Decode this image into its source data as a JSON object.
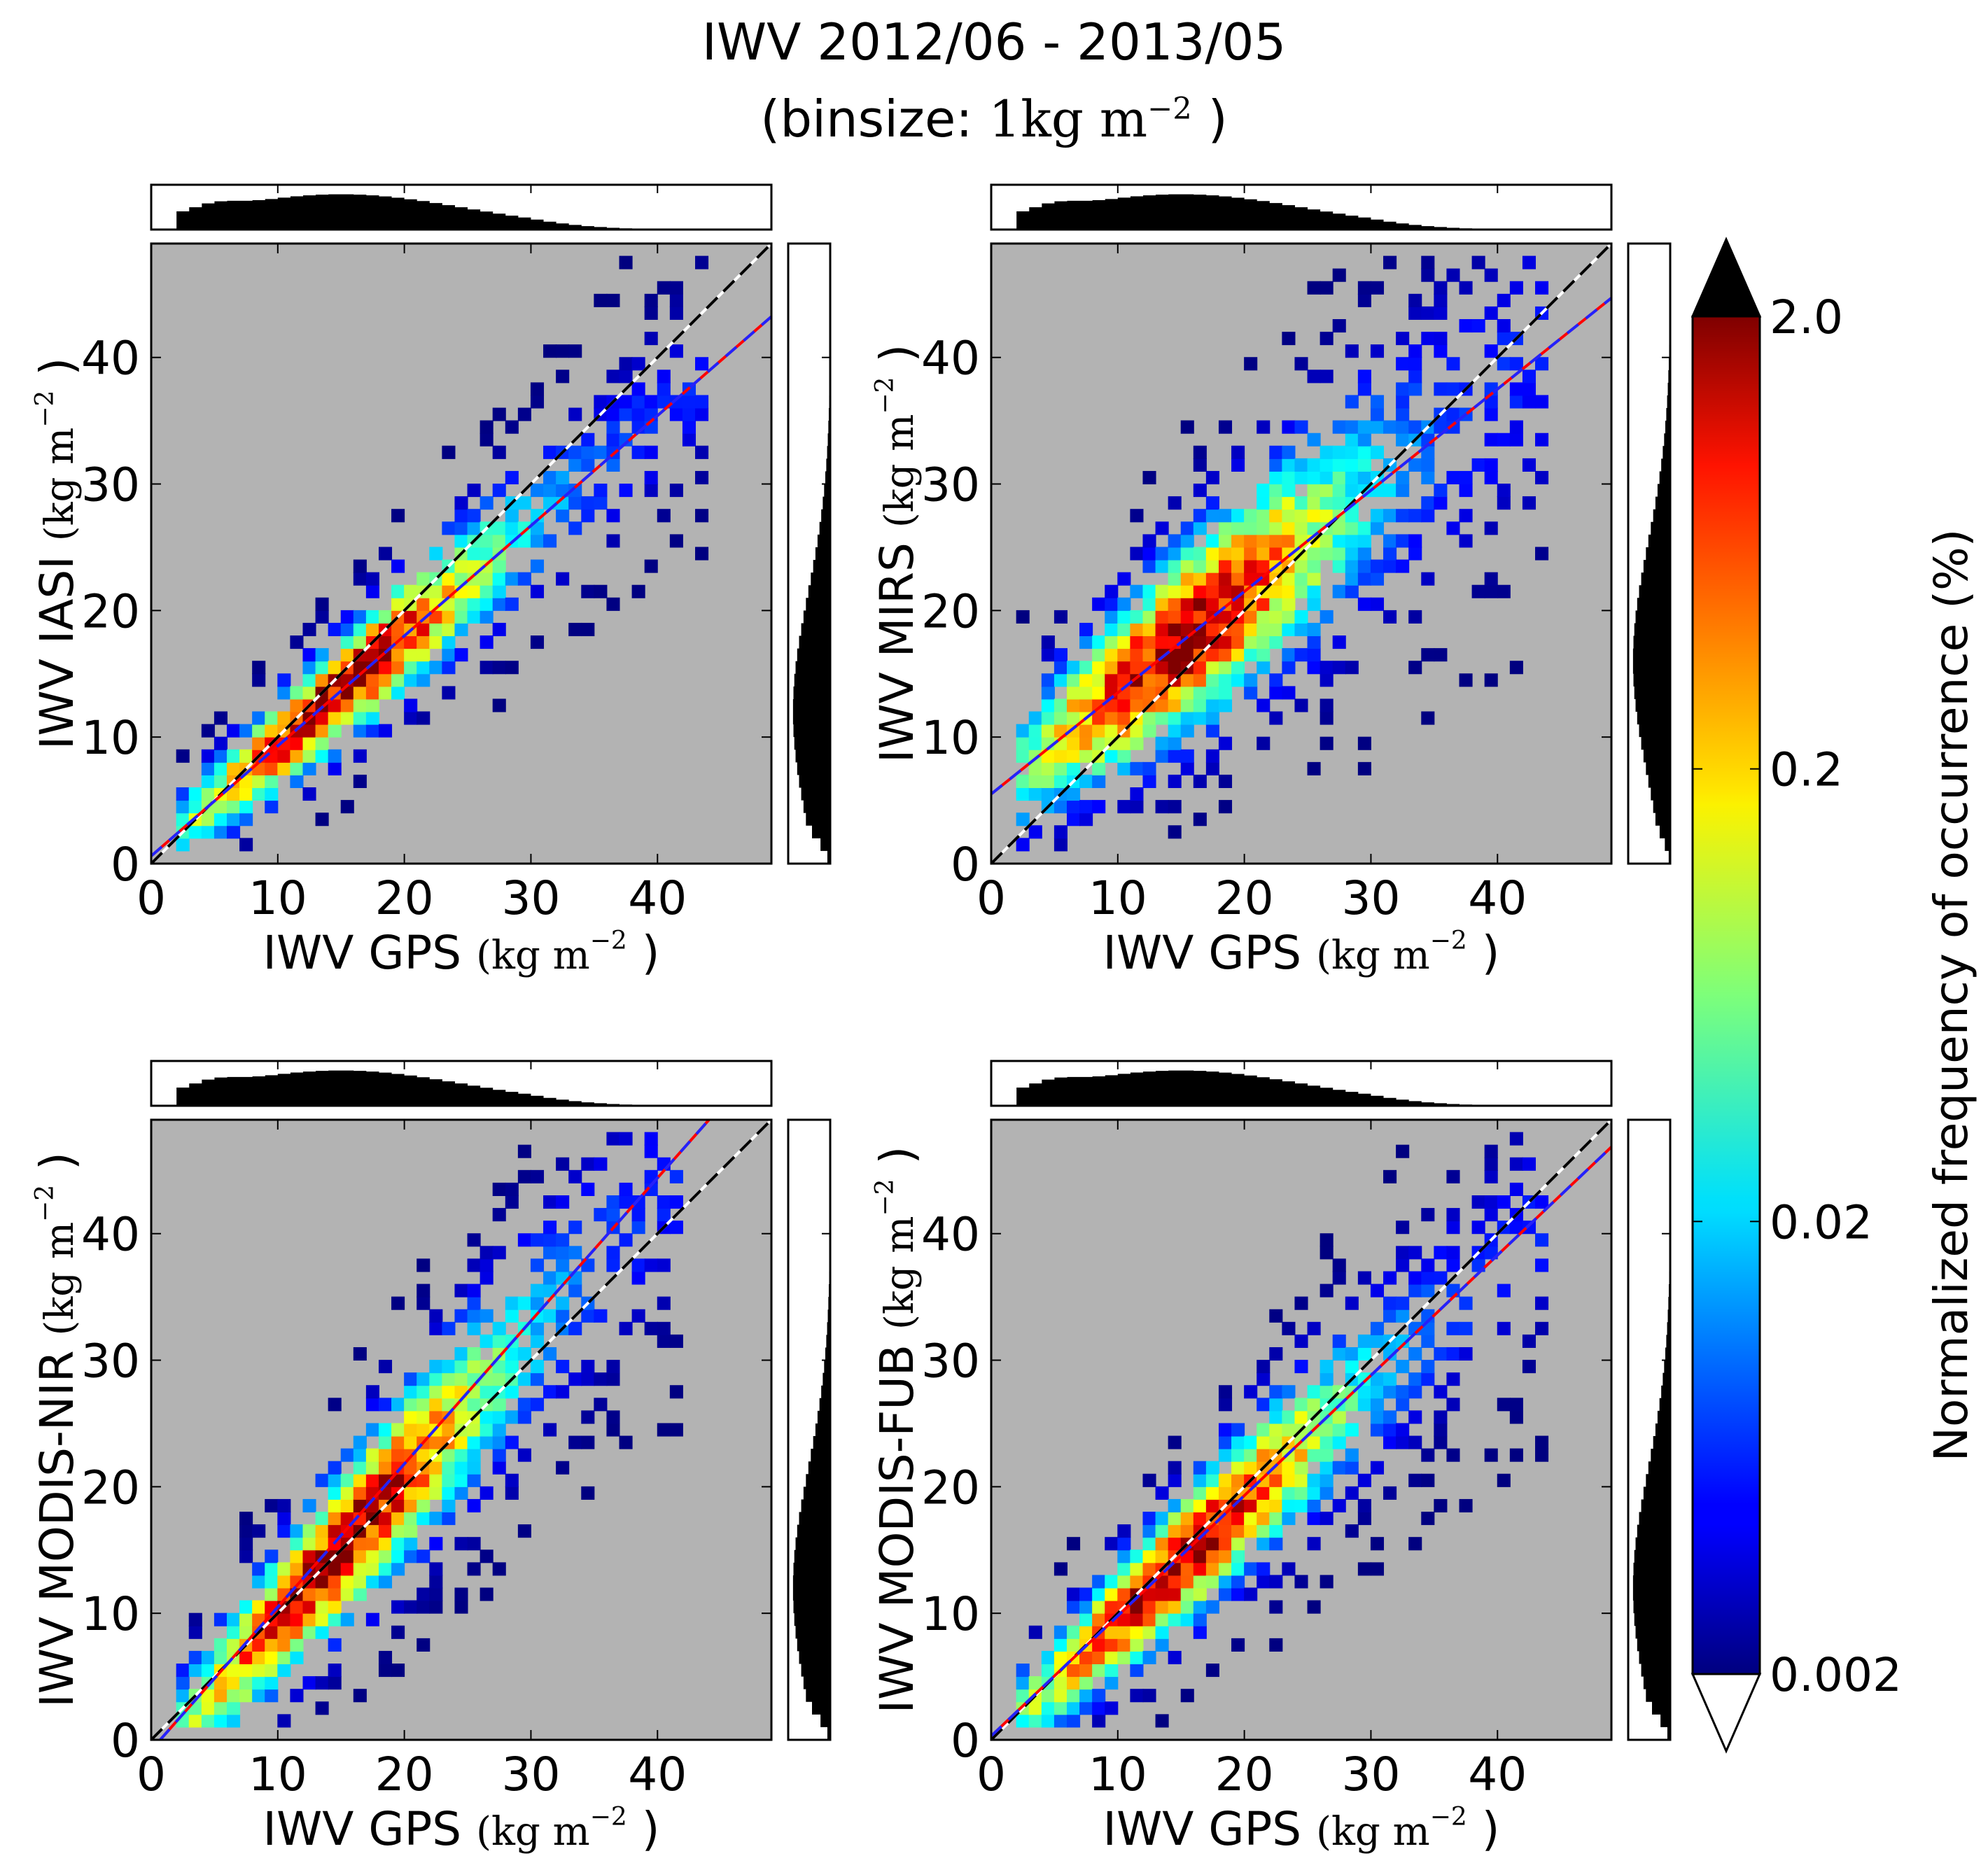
{
  "title": "IWV 2012/06 - 2013/05",
  "subtitle_prefix": "(binsize: ",
  "subtitle_unit": "1kg m",
  "subtitle_exp": "−2",
  "subtitle_suffix": " )",
  "colors": {
    "plot_background": "#b3b3b3",
    "identity_line_dash": "#000000",
    "identity_line_base": "#ffffff",
    "fit_line_red": "#ff0000",
    "fit_line_blue": "#2222ff",
    "histogram": "#000000"
  },
  "colorbar": {
    "label": "Normalized frequency of occurrence (%)",
    "scale": "log",
    "ticks": [
      "2.0",
      "0.2",
      "0.02",
      "0.002"
    ],
    "tick_values": [
      2.0,
      0.2,
      0.02,
      0.002
    ],
    "range": [
      0.002,
      2.0
    ],
    "extend": "both",
    "over_color": "#000000",
    "under_color": "#ffffff",
    "colormap": "jet"
  },
  "chart_data": [
    {
      "type": "heatmap",
      "panel": "top-left",
      "xlabel_text": "IWV GPS ",
      "ylabel_text": "IWV IASI ",
      "unit_text": "kg m",
      "unit_exp": "−2",
      "xlim": [
        0,
        49
      ],
      "ylim": [
        0,
        49
      ],
      "xticks": [
        "0",
        "10",
        "20",
        "30",
        "40"
      ],
      "yticks": [
        "0",
        "10",
        "20",
        "30",
        "40"
      ],
      "fit": {
        "slope": 0.87,
        "intercept": 0.6
      },
      "spread": 2.3,
      "x_range": [
        2,
        42
      ],
      "scatter_y_offset": 0
    },
    {
      "type": "heatmap",
      "panel": "top-right",
      "xlabel_text": "IWV GPS ",
      "ylabel_text": "IWV MIRS ",
      "unit_text": "kg m",
      "unit_exp": "−2",
      "xlim": [
        0,
        49
      ],
      "ylim": [
        0,
        49
      ],
      "xticks": [
        "0",
        "10",
        "20",
        "30",
        "40"
      ],
      "yticks": [
        "0",
        "10",
        "20",
        "30",
        "40"
      ],
      "fit": {
        "slope": 0.8,
        "intercept": 5.5
      },
      "spread": 4.0,
      "x_range": [
        2,
        42
      ],
      "scatter_y_offset": 0
    },
    {
      "type": "heatmap",
      "panel": "bottom-left",
      "xlabel_text": "IWV GPS ",
      "ylabel_text": "IWV MODIS-NIR ",
      "unit_text": "kg m",
      "unit_exp": "−2",
      "xlim": [
        0,
        49
      ],
      "ylim": [
        0,
        49
      ],
      "xticks": [
        "0",
        "10",
        "20",
        "30",
        "40"
      ],
      "yticks": [
        "0",
        "10",
        "20",
        "30",
        "40"
      ],
      "fit": {
        "slope": 1.13,
        "intercept": -0.8
      },
      "spread": 3.3,
      "x_range": [
        2,
        40
      ],
      "scatter_y_offset": -1.0
    },
    {
      "type": "heatmap",
      "panel": "bottom-right",
      "xlabel_text": "IWV GPS ",
      "ylabel_text": "IWV MODIS-FUB ",
      "unit_text": "kg m",
      "unit_exp": "−2",
      "xlim": [
        0,
        49
      ],
      "ylim": [
        0,
        49
      ],
      "xticks": [
        "0",
        "10",
        "20",
        "30",
        "40"
      ],
      "yticks": [
        "0",
        "10",
        "20",
        "30",
        "40"
      ],
      "fit": {
        "slope": 0.95,
        "intercept": 0.3
      },
      "spread": 2.8,
      "x_range": [
        2,
        42
      ],
      "scatter_y_offset": -0.5
    }
  ]
}
